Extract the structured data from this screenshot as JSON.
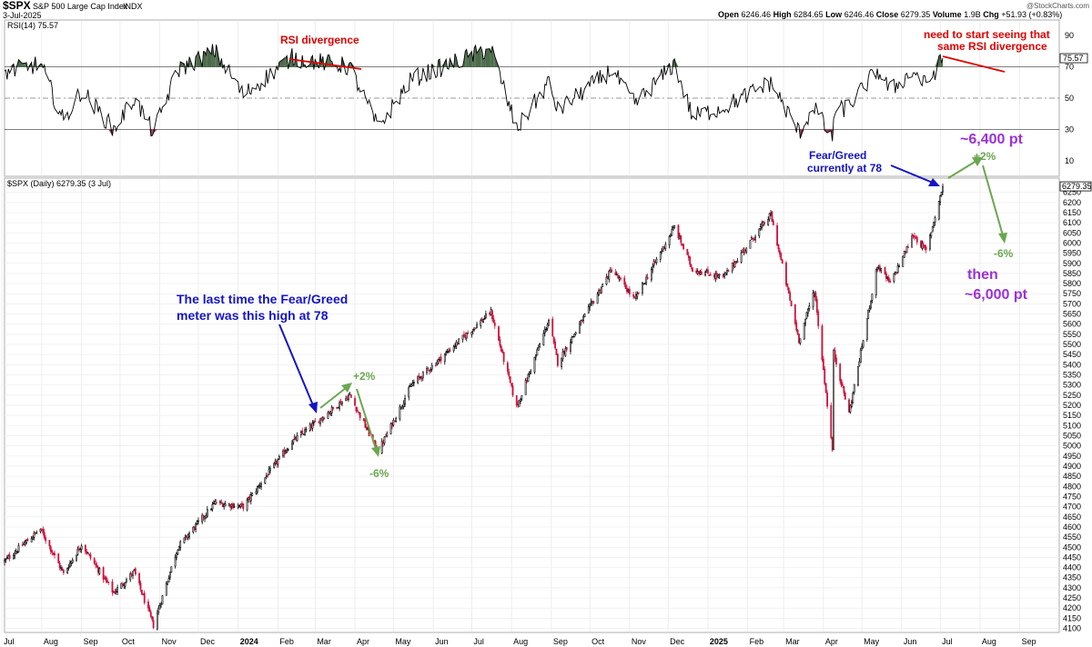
{
  "header": {
    "symbol": "$SPX",
    "name": "S&P 500 Large Cap Index",
    "exchange": "INDX",
    "date": "3-Jul-2025",
    "watermark": "@StockCharts.com",
    "ohlc": {
      "open_label": "Open",
      "open": "6246.46",
      "high_label": "High",
      "high": "6284.65",
      "low_label": "Low",
      "low": "6246.46",
      "close_label": "Close",
      "close": "6279.35",
      "volume_label": "Volume",
      "volume": "1.9B",
      "chg_label": "Chg",
      "chg": "+51.93 (+0.83%)"
    }
  },
  "rsi_panel": {
    "label": "RSI(14) 75.57",
    "last_value": "75.57",
    "ticks": [
      "90",
      "70",
      "50",
      "30",
      "10"
    ],
    "overbought": 70,
    "midline": 50,
    "oversold": 30,
    "ylim": [
      0,
      100
    ]
  },
  "price_panel": {
    "label": "$SPX (Daily) 6279.35 (3 Jul)",
    "last_value": "6279.35",
    "ticks": [
      "6250",
      "6200",
      "6150",
      "6100",
      "6050",
      "6000",
      "5950",
      "5900",
      "5850",
      "5800",
      "5750",
      "5700",
      "5650",
      "5600",
      "5550",
      "5500",
      "5450",
      "5400",
      "5350",
      "5300",
      "5250",
      "5200",
      "5150",
      "5100",
      "5050",
      "5000",
      "4950",
      "4900",
      "4850",
      "4800",
      "4750",
      "4700",
      "4650",
      "4600",
      "4550",
      "4500",
      "4450",
      "4400",
      "4350",
      "4300",
      "4250",
      "4200",
      "4150",
      "4100"
    ],
    "ylim": [
      4080,
      6320
    ]
  },
  "x_axis": {
    "labels": [
      "Jul",
      "Aug",
      "Sep",
      "Oct",
      "Nov",
      "Dec",
      "2024",
      "Feb",
      "Mar",
      "Apr",
      "May",
      "Jun",
      "Jul",
      "Aug",
      "Sep",
      "Oct",
      "Nov",
      "Dec",
      "2025",
      "Feb",
      "Mar",
      "Apr",
      "May",
      "Jun",
      "Jul",
      "Aug",
      "Sep"
    ],
    "bold_labels": [
      "2024",
      "2025"
    ]
  },
  "annotations": {
    "rsi_divergence": "RSI divergence",
    "need_line1": "need to start seeing that",
    "need_line2": "same  RSI divergence",
    "fear_greed_line1": "Fear/Greed",
    "fear_greed_line2": "currently at 78",
    "target_high": "~6,400 pt",
    "plus2_right": "+2%",
    "minus6_right": "-6%",
    "then": "then",
    "target_low": "~6,000 pt",
    "last_time_line1": "The last time the Fear/Greed",
    "last_time_line2": "meter was this high at 78",
    "plus2_left": "+2%",
    "minus6_left": "-6%"
  },
  "colors": {
    "up": "#000000",
    "down": "#d0103a",
    "red_annotation": "#e00000",
    "blue_annotation": "#1414c8",
    "green_annotation": "#6aa84f",
    "purple_annotation": "#9b30d9",
    "rsi_fill": "#4a6a4a"
  },
  "chart_data": {
    "type": "candlestick",
    "x_start": "2023-07-03",
    "x_end": "2025-07-03",
    "price_path": [
      [
        "2023-07-01",
        4420
      ],
      [
        "2023-07-31",
        4590
      ],
      [
        "2023-08-18",
        4370
      ],
      [
        "2023-09-01",
        4515
      ],
      [
        "2023-09-26",
        4275
      ],
      [
        "2023-10-12",
        4380
      ],
      [
        "2023-10-27",
        4115
      ],
      [
        "2023-11-15",
        4500
      ],
      [
        "2023-12-14",
        4720
      ],
      [
        "2024-01-05",
        4700
      ],
      [
        "2024-02-12",
        5020
      ],
      [
        "2024-03-28",
        5250
      ],
      [
        "2024-04-19",
        4970
      ],
      [
        "2024-05-15",
        5300
      ],
      [
        "2024-07-16",
        5660
      ],
      [
        "2024-08-05",
        5190
      ],
      [
        "2024-08-30",
        5620
      ],
      [
        "2024-09-06",
        5410
      ],
      [
        "2024-10-18",
        5870
      ],
      [
        "2024-11-05",
        5720
      ],
      [
        "2024-12-06",
        6080
      ],
      [
        "2024-12-20",
        5870
      ],
      [
        "2025-01-13",
        5830
      ],
      [
        "2025-02-19",
        6140
      ],
      [
        "2025-03-13",
        5520
      ],
      [
        "2025-03-25",
        5770
      ],
      [
        "2025-04-08",
        4980
      ],
      [
        "2025-04-09",
        5460
      ],
      [
        "2025-04-21",
        5160
      ],
      [
        "2025-05-13",
        5890
      ],
      [
        "2025-05-23",
        5800
      ],
      [
        "2025-06-10",
        6040
      ],
      [
        "2025-06-20",
        5960
      ],
      [
        "2025-07-03",
        6279
      ]
    ],
    "rsi_path": [
      [
        "2023-07-01",
        66
      ],
      [
        "2023-07-31",
        72
      ],
      [
        "2023-08-18",
        35
      ],
      [
        "2023-09-01",
        55
      ],
      [
        "2023-09-26",
        30
      ],
      [
        "2023-10-12",
        50
      ],
      [
        "2023-10-27",
        28
      ],
      [
        "2023-11-15",
        68
      ],
      [
        "2023-12-14",
        80
      ],
      [
        "2024-01-05",
        52
      ],
      [
        "2024-02-12",
        76
      ],
      [
        "2024-03-28",
        70
      ],
      [
        "2024-04-19",
        31
      ],
      [
        "2024-05-15",
        62
      ],
      [
        "2024-07-16",
        82
      ],
      [
        "2024-08-05",
        30
      ],
      [
        "2024-08-30",
        60
      ],
      [
        "2024-09-06",
        42
      ],
      [
        "2024-10-18",
        68
      ],
      [
        "2024-11-05",
        46
      ],
      [
        "2024-12-06",
        72
      ],
      [
        "2024-12-20",
        38
      ],
      [
        "2025-01-13",
        44
      ],
      [
        "2025-02-19",
        60
      ],
      [
        "2025-03-13",
        28
      ],
      [
        "2025-03-25",
        45
      ],
      [
        "2025-04-08",
        22
      ],
      [
        "2025-04-09",
        40
      ],
      [
        "2025-04-21",
        45
      ],
      [
        "2025-05-13",
        68
      ],
      [
        "2025-05-23",
        55
      ],
      [
        "2025-06-10",
        67
      ],
      [
        "2025-06-20",
        58
      ],
      [
        "2025-07-03",
        75.57
      ]
    ]
  }
}
